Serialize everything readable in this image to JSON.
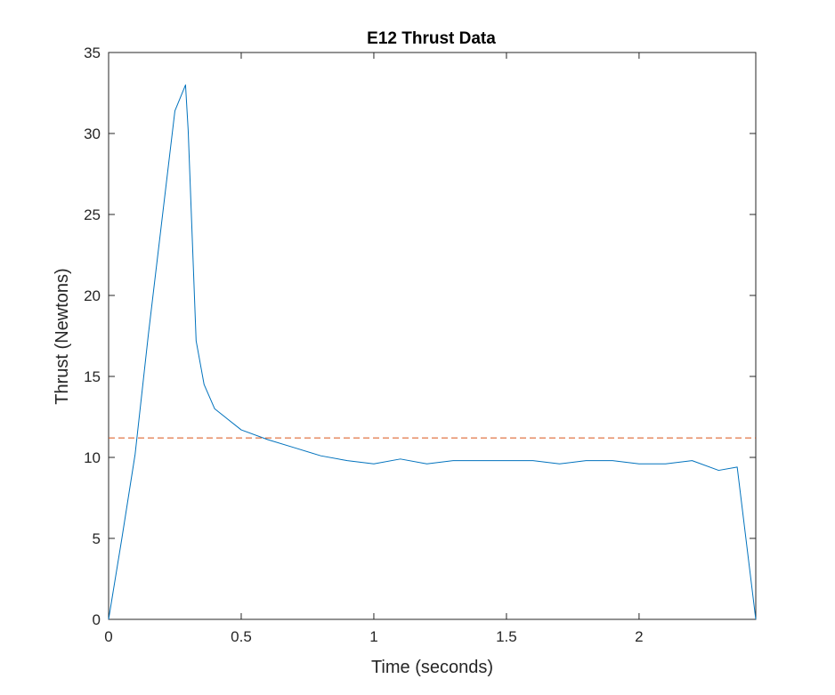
{
  "chart_data": {
    "type": "line",
    "title": "E12 Thrust Data",
    "xlabel": "Time (seconds)",
    "ylabel": "Thrust (Newtons)",
    "xlim": [
      0,
      2.44
    ],
    "ylim": [
      0,
      35
    ],
    "xticks": [
      0,
      0.5,
      1,
      1.5,
      2
    ],
    "xtick_labels": [
      "0",
      "0.5",
      "1",
      "1.5",
      "2"
    ],
    "yticks": [
      0,
      5,
      10,
      15,
      20,
      25,
      30,
      35
    ],
    "ytick_labels": [
      "0",
      "5",
      "10",
      "15",
      "20",
      "25",
      "30",
      "35"
    ],
    "grid": false,
    "box": true,
    "series": [
      {
        "style": "solid",
        "color": "#0072BD",
        "x": [
          0,
          0.05,
          0.1,
          0.15,
          0.2,
          0.25,
          0.29,
          0.3,
          0.33,
          0.35,
          0.36,
          0.4,
          0.5,
          0.6,
          0.7,
          0.8,
          0.9,
          1.0,
          1.1,
          1.2,
          1.3,
          1.4,
          1.5,
          1.6,
          1.7,
          1.8,
          1.9,
          2.0,
          2.1,
          2.2,
          2.3,
          2.37,
          2.44
        ],
        "y": [
          0,
          5.0,
          10.2,
          17.6,
          24.5,
          31.4,
          33.0,
          30.2,
          17.2,
          15.4,
          14.5,
          13.0,
          11.7,
          11.1,
          10.6,
          10.1,
          9.8,
          9.6,
          9.9,
          9.6,
          9.8,
          9.8,
          9.8,
          9.8,
          9.6,
          9.8,
          9.8,
          9.6,
          9.6,
          9.8,
          9.2,
          9.4,
          0
        ]
      },
      {
        "style": "dashed",
        "color": "#D95319",
        "x": [
          0,
          2.44
        ],
        "y": [
          11.2,
          11.2
        ]
      }
    ]
  }
}
